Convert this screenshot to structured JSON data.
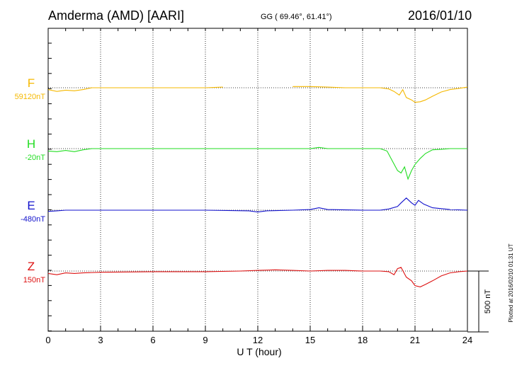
{
  "header": {
    "station": "Amderma (AMD)  [AARI]",
    "coords": "GG ( 69.46°,  61.41°)",
    "date": "2016/01/10"
  },
  "side_note": "Plotted at 2016/02/10 01:31  UT",
  "scale_label": "500 nT",
  "chart_data": {
    "type": "line",
    "title": "",
    "xlabel": "U T (hour)",
    "ylabel": "",
    "xlim": [
      0,
      24
    ],
    "x_ticks": [
      "0",
      "3",
      "6",
      "9",
      "12",
      "15",
      "18",
      "21",
      "24"
    ],
    "grid": true,
    "scale_bar_nT": 500,
    "series": [
      {
        "name": "F",
        "baseline_label": "59120nT",
        "baseline_nT": 59120,
        "color": "#f5b800",
        "x": [
          0,
          0.5,
          1,
          1.5,
          2,
          2.5,
          3,
          4,
          5,
          6,
          7,
          8,
          9,
          10
        ],
        "y": [
          -15,
          -30,
          -20,
          -25,
          -15,
          0,
          0,
          0,
          0,
          0,
          0,
          0,
          0,
          5
        ],
        "segment2": {
          "x": [
            14,
            15,
            16,
            17,
            18,
            19,
            19.5,
            19.8,
            20.1,
            20.3,
            20.5,
            20.8,
            21,
            21.3,
            21.6,
            22,
            22.5,
            23,
            23.5,
            24
          ],
          "y": [
            10,
            10,
            5,
            0,
            0,
            0,
            -10,
            -30,
            -60,
            -15,
            -80,
            -100,
            -120,
            -115,
            -100,
            -70,
            -35,
            -15,
            -5,
            5
          ]
        }
      },
      {
        "name": "H",
        "baseline_label": "-20nT",
        "baseline_nT": -20,
        "color": "#22dd22",
        "x": [
          0,
          0.5,
          1,
          1.5,
          2,
          2.5,
          3,
          6,
          9,
          12,
          14,
          15,
          15.5,
          16,
          18,
          19,
          19.4,
          19.7,
          20,
          20.2,
          20.4,
          20.6,
          20.8,
          21,
          21.3,
          21.6,
          22,
          22.5,
          23,
          23.5,
          24
        ],
        "y": [
          -20,
          -25,
          -15,
          -25,
          -10,
          0,
          0,
          0,
          0,
          0,
          0,
          0,
          10,
          0,
          0,
          0,
          -20,
          -100,
          -180,
          -200,
          -150,
          -250,
          -180,
          -130,
          -80,
          -40,
          -10,
          -5,
          0,
          0,
          0
        ]
      },
      {
        "name": "E",
        "baseline_label": "-480nT",
        "baseline_nT": -480,
        "color": "#1111cc",
        "x": [
          0,
          0.5,
          1,
          1.5,
          2,
          3,
          6,
          9,
          11.5,
          12,
          12.5,
          14,
          15,
          15.5,
          16,
          18,
          19,
          19.5,
          20,
          20.2,
          20.5,
          20.8,
          21,
          21.2,
          21.5,
          22,
          23,
          24
        ],
        "y": [
          -10,
          -5,
          0,
          0,
          0,
          0,
          0,
          0,
          -5,
          -15,
          -5,
          0,
          5,
          20,
          5,
          0,
          0,
          10,
          30,
          60,
          100,
          60,
          40,
          80,
          50,
          20,
          5,
          0
        ]
      },
      {
        "name": "Z",
        "baseline_label": "150nT",
        "baseline_nT": 150,
        "color": "#dd1111",
        "x": [
          0,
          0.5,
          1,
          1.5,
          2,
          3,
          6,
          9,
          11,
          12,
          13,
          14,
          15,
          16,
          17,
          18,
          19,
          19.5,
          19.8,
          20,
          20.2,
          20.5,
          20.8,
          21,
          21.3,
          21.6,
          22,
          22.5,
          23,
          23.5,
          24
        ],
        "y": [
          -20,
          -30,
          -15,
          -20,
          -15,
          -10,
          -5,
          -5,
          0,
          5,
          10,
          5,
          0,
          5,
          5,
          0,
          0,
          -5,
          -30,
          20,
          30,
          -50,
          -80,
          -120,
          -130,
          -110,
          -80,
          -40,
          -15,
          -5,
          0
        ]
      }
    ]
  }
}
